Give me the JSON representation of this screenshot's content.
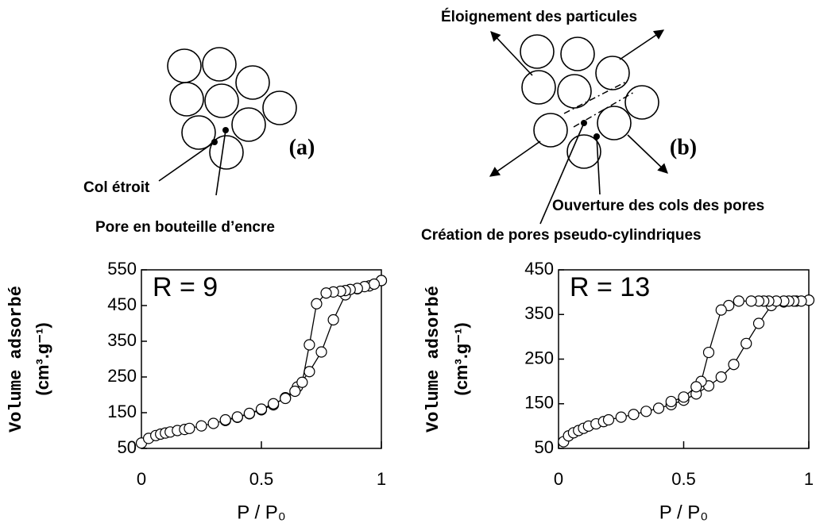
{
  "diagrams": [
    {
      "label": "(a)",
      "annotations": [
        "Col étroit",
        "Pore en bouteille d’encre"
      ]
    },
    {
      "label": "(b)",
      "annotations": [
        "Éloignement des particules",
        "Ouverture des cols des pores",
        "Création de pores pseudo-cylindriques"
      ]
    }
  ],
  "chart_data": [
    {
      "type": "line",
      "annotation": "R = 9",
      "xlabel": "P / P₀",
      "ylabel": "Volume adsorbé",
      "ylabel_unit": "(cm³.g⁻¹)",
      "xlim": [
        0,
        1
      ],
      "ylim": [
        50,
        550
      ],
      "xticks": [
        0,
        0.5,
        1
      ],
      "yticks": [
        50,
        150,
        250,
        350,
        450,
        550
      ],
      "series": [
        {
          "color": "#000000",
          "x": [
            0,
            0.03,
            0.06,
            0.08,
            0.1,
            0.12,
            0.15,
            0.18,
            0.2,
            0.25,
            0.3,
            0.35,
            0.4,
            0.45,
            0.5,
            0.55,
            0.6,
            0.65,
            0.7,
            0.75,
            0.8,
            0.85,
            0.9,
            0.95,
            1.0
          ],
          "values": [
            65,
            78,
            86,
            90,
            93,
            96,
            100,
            103,
            106,
            113,
            120,
            128,
            137,
            147,
            158,
            172,
            192,
            222,
            265,
            320,
            410,
            480,
            497,
            505,
            520
          ]
        },
        {
          "color": "#000000",
          "x": [
            1,
            0.97,
            0.93,
            0.9,
            0.87,
            0.85,
            0.83,
            0.8,
            0.77,
            0.73,
            0.7,
            0.67,
            0.64,
            0.6,
            0.55,
            0.5,
            0.45,
            0.4,
            0.35
          ],
          "values": [
            520,
            510,
            503,
            498,
            495,
            492,
            490,
            488,
            485,
            455,
            340,
            235,
            210,
            190,
            175,
            160,
            148,
            138,
            130
          ]
        }
      ]
    },
    {
      "type": "line",
      "annotation": "R = 13",
      "xlabel": "P / P₀",
      "ylabel": "Volume adsorbé",
      "ylabel_unit": "(cm³.g⁻¹)",
      "xlim": [
        0,
        1
      ],
      "ylim": [
        50,
        450
      ],
      "xticks": [
        0,
        0.5,
        1
      ],
      "yticks": [
        50,
        150,
        250,
        350,
        450
      ],
      "series": [
        {
          "color": "#000000",
          "x": [
            0.02,
            0.04,
            0.06,
            0.08,
            0.1,
            0.12,
            0.15,
            0.18,
            0.2,
            0.25,
            0.3,
            0.35,
            0.4,
            0.45,
            0.5,
            0.55,
            0.6,
            0.65,
            0.7,
            0.75,
            0.8,
            0.85,
            0.9,
            0.95,
            1.0
          ],
          "values": [
            65,
            78,
            85,
            90,
            95,
            100,
            105,
            110,
            114,
            120,
            126,
            133,
            140,
            148,
            158,
            172,
            190,
            210,
            238,
            285,
            330,
            370,
            378,
            380,
            382
          ]
        },
        {
          "color": "#000000",
          "x": [
            1,
            0.97,
            0.94,
            0.92,
            0.9,
            0.87,
            0.84,
            0.82,
            0.8,
            0.77,
            0.72,
            0.68,
            0.65,
            0.6,
            0.57,
            0.55,
            0.5,
            0.45
          ],
          "values": [
            382,
            380,
            380,
            380,
            380,
            380,
            380,
            380,
            380,
            380,
            380,
            370,
            360,
            265,
            200,
            188,
            165,
            155
          ]
        }
      ]
    }
  ]
}
